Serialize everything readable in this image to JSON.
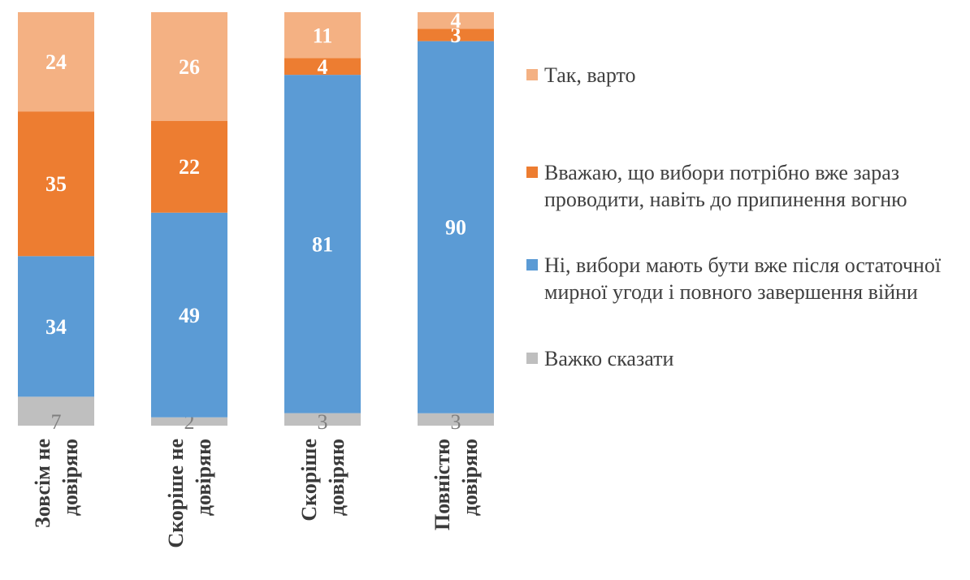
{
  "chart_data": {
    "type": "bar",
    "stacked": true,
    "categories": [
      "Зовсім не довіряю",
      "Скоріше не довіряю",
      "Скоріше довіряю",
      "Повністю довіряю"
    ],
    "series": [
      {
        "name": "Важко сказати",
        "color": "#BFBFBF",
        "values": [
          7,
          2,
          3,
          3
        ]
      },
      {
        "name": "Ні, вибори мають бути вже після остаточної мирної угоди і повного завершення війни",
        "color": "#5B9BD5",
        "values": [
          34,
          49,
          81,
          90
        ]
      },
      {
        "name": "Вважаю, що вибори потрібно вже зараз проводити, навіть до припинення вогню",
        "color": "#ED7D31",
        "values": [
          35,
          22,
          4,
          3
        ]
      },
      {
        "name": "Так, варто",
        "color": "#F4B183",
        "values": [
          24,
          26,
          11,
          4
        ]
      }
    ],
    "legend_order": [
      "Так, варто",
      "Вважаю, що вибори потрібно вже зараз проводити, навіть до припинення вогню",
      "Ні, вибори мають бути вже після остаточної мирної угоди і повного завершення війни",
      "Важко сказати"
    ],
    "legend_position": "right",
    "ylim": [
      0,
      100
    ],
    "grid": false
  }
}
